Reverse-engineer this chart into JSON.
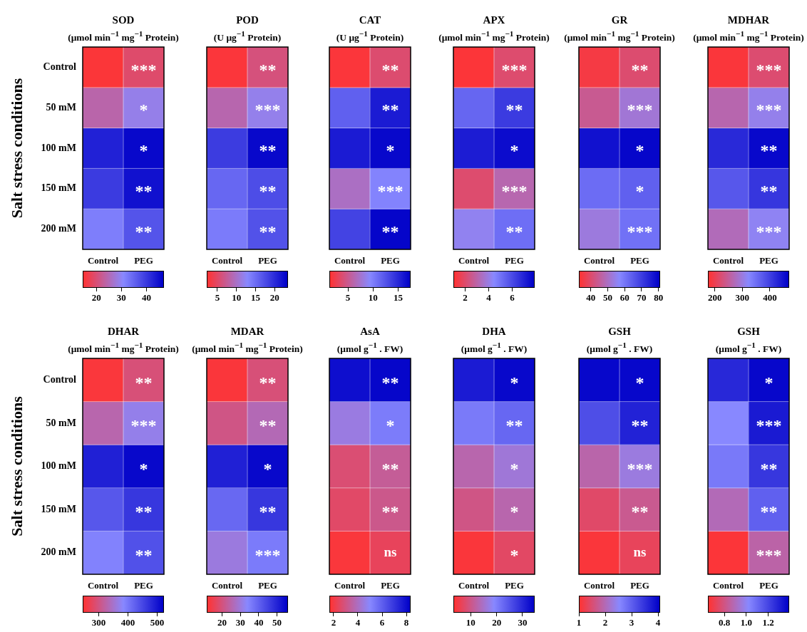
{
  "chart_data": [
    {
      "type": "heatmap",
      "title": "SOD",
      "subtitle": "(μmol min$^{−1}$ mg$^{−1}$ Protein)",
      "ylabel": "Salt stress conditions",
      "categories": [
        "Control",
        "PEG"
      ],
      "y_categories": [
        "Control",
        "50 mM",
        "100 mM",
        "150 mM",
        "200 mM"
      ],
      "cells": [
        [
          15,
          19
        ],
        [
          24,
          29
        ],
        [
          43,
          46
        ],
        [
          40,
          45
        ],
        [
          32,
          37
        ]
      ],
      "cell_labels": [
        [
          null,
          "***"
        ],
        [
          null,
          "*"
        ],
        [
          null,
          "*"
        ],
        [
          null,
          "**"
        ],
        [
          null,
          "**"
        ]
      ],
      "clim": [
        14.5,
        47
      ],
      "cticks": [
        20,
        30,
        40
      ]
    },
    {
      "type": "heatmap",
      "title": "POD",
      "subtitle": "(U μg$^{−1}$ Protein)",
      "tick_labels": "x",
      "categories": [
        "Control",
        "PEG"
      ],
      "y_categories": [
        null,
        null,
        null,
        null,
        null
      ],
      "cells": [
        [
          2.6,
          6.0
        ],
        [
          8.6,
          11.8
        ],
        [
          18.8,
          22.9
        ],
        [
          15.4,
          17.5
        ],
        [
          13.9,
          17.1
        ]
      ],
      "cell_labels": [
        [
          null,
          "**"
        ],
        [
          null,
          "***"
        ],
        [
          null,
          "**"
        ],
        [
          null,
          "**"
        ],
        [
          null,
          "**"
        ]
      ],
      "clim": [
        2.2,
        23.5
      ],
      "cticks": [
        5,
        10,
        15,
        20
      ]
    },
    {
      "type": "heatmap",
      "title": "CAT",
      "subtitle": "(U μg$^{−1}$ Protein)",
      "tick_labels": "x",
      "categories": [
        "Control",
        "PEG"
      ],
      "y_categories": [
        null,
        null,
        null,
        null,
        null
      ],
      "cells": [
        [
          1.6,
          3.7
        ],
        [
          11.8,
          15.9
        ],
        [
          15.9,
          17.0
        ],
        [
          7.0,
          9.7
        ],
        [
          13.5,
          17.2
        ]
      ],
      "cell_labels": [
        [
          null,
          "**"
        ],
        [
          null,
          "**"
        ],
        [
          null,
          "*"
        ],
        [
          null,
          "***"
        ],
        [
          null,
          "**"
        ]
      ],
      "clim": [
        1.3,
        17.5
      ],
      "cticks": [
        5,
        10,
        15
      ]
    },
    {
      "type": "heatmap",
      "title": "APX",
      "subtitle": "(μmol min$^{−1}$ mg$^{−1}$ Protein)",
      "tick_labels": "x",
      "categories": [
        "Control",
        "PEG"
      ],
      "y_categories": [
        null,
        null,
        null,
        null,
        null
      ],
      "cells": [
        [
          1.1,
          2.0
        ],
        [
          5.3,
          6.4
        ],
        [
          7.2,
          7.6
        ],
        [
          2.0,
          3.1
        ],
        [
          4.2,
          5.1
        ]
      ],
      "cell_labels": [
        [
          null,
          "***"
        ],
        [
          null,
          "**"
        ],
        [
          null,
          "*"
        ],
        [
          null,
          "***"
        ],
        [
          null,
          "**"
        ]
      ],
      "clim": [
        1.0,
        7.9
      ],
      "cticks": [
        2,
        4,
        6
      ]
    },
    {
      "type": "heatmap",
      "title": "GR",
      "subtitle": "(μmol min$^{−1}$ mg$^{−1}$ Protein)",
      "tick_labels": "x",
      "categories": [
        "Control",
        "PEG"
      ],
      "y_categories": [
        null,
        null,
        null,
        null,
        null
      ],
      "cells": [
        [
          35,
          40
        ],
        [
          44,
          52
        ],
        [
          78,
          80
        ],
        [
          62,
          64
        ],
        [
          53,
          61
        ]
      ],
      "cell_labels": [
        [
          null,
          "**"
        ],
        [
          null,
          "***"
        ],
        [
          null,
          "*"
        ],
        [
          null,
          "*"
        ],
        [
          null,
          "***"
        ]
      ],
      "clim": [
        33,
        81
      ],
      "cticks": [
        40,
        50,
        60,
        70,
        80
      ]
    },
    {
      "type": "heatmap",
      "title": "MDHAR",
      "subtitle": "(μmol min$^{−1}$ mg$^{−1}$ Protein)",
      "tick_labels": "x",
      "categories": [
        "Control",
        "PEG"
      ],
      "y_categories": [
        null,
        null,
        null,
        null,
        null
      ],
      "cells": [
        [
          181,
          219
        ],
        [
          264,
          308
        ],
        [
          426,
          461
        ],
        [
          376,
          411
        ],
        [
          272,
          314
        ]
      ],
      "cell_labels": [
        [
          null,
          "***"
        ],
        [
          null,
          "***"
        ],
        [
          null,
          "**"
        ],
        [
          null,
          "**"
        ],
        [
          null,
          "***"
        ]
      ],
      "clim": [
        175,
        470
      ],
      "cticks": [
        200,
        300,
        400
      ]
    },
    {
      "type": "heatmap",
      "title": "DHAR",
      "subtitle": "(μmol min$^{−1}$ mg$^{−1}$ Protein)",
      "ylabel": "Salt stress conditions",
      "categories": [
        "Control",
        "PEG"
      ],
      "y_categories": [
        "Control",
        "50 mM",
        "100 mM",
        "150 mM",
        "200 mM"
      ],
      "cells": [
        [
          251,
          292
        ],
        [
          328,
          370
        ],
        [
          490,
          515
        ],
        [
          434,
          467
        ],
        [
          390,
          440
        ]
      ],
      "cell_labels": [
        [
          null,
          "**"
        ],
        [
          null,
          "***"
        ],
        [
          null,
          "*"
        ],
        [
          null,
          "**"
        ],
        [
          null,
          "**"
        ]
      ],
      "clim": [
        245,
        523
      ],
      "cticks": [
        300,
        400,
        500
      ]
    },
    {
      "type": "heatmap",
      "title": "MDAR",
      "subtitle": "(μmol min$^{−1}$ mg$^{−1}$ Protein)",
      "tick_labels": "x",
      "categories": [
        "Control",
        "PEG"
      ],
      "y_categories": [
        null,
        null,
        null,
        null,
        null
      ],
      "cells": [
        [
          12.5,
          19.1
        ],
        [
          20.5,
          25.8
        ],
        [
          50.7,
          54.7
        ],
        [
          39.1,
          47.1
        ],
        [
          30.2,
          36.0
        ]
      ],
      "cell_labels": [
        [
          null,
          "**"
        ],
        [
          null,
          "**"
        ],
        [
          null,
          "*"
        ],
        [
          null,
          "**"
        ],
        [
          null,
          "***"
        ]
      ],
      "clim": [
        11.6,
        56
      ],
      "cticks": [
        20,
        30,
        40,
        50
      ]
    },
    {
      "type": "heatmap",
      "title": "AsA",
      "subtitle": "(μmol g$^{−1}$ . FW)",
      "tick_labels": "x",
      "categories": [
        "Control",
        "PEG"
      ],
      "y_categories": [
        null,
        null,
        null,
        null,
        null
      ],
      "cells": [
        [
          8.0,
          8.2
        ],
        [
          4.5,
          5.3
        ],
        [
          2.7,
          3.3
        ],
        [
          2.5,
          3.1
        ],
        [
          1.8,
          2.3
        ]
      ],
      "cell_labels": [
        [
          null,
          "**"
        ],
        [
          null,
          "*"
        ],
        [
          null,
          "**"
        ],
        [
          null,
          "**"
        ],
        [
          null,
          "ns"
        ]
      ],
      "clim": [
        1.65,
        8.35
      ],
      "cticks": [
        2,
        4,
        6,
        8
      ]
    },
    {
      "type": "heatmap",
      "title": "DHA",
      "subtitle": "(μmol g$^{−1}$ . FW)",
      "tick_labels": "x",
      "categories": [
        "Control",
        "PEG"
      ],
      "y_categories": [
        null,
        null,
        null,
        null,
        null
      ],
      "cells": [
        [
          31.6,
          33.8
        ],
        [
          20.6,
          22.8
        ],
        [
          12.7,
          15.9
        ],
        [
          9.6,
          12.7
        ],
        [
          3.9,
          7.1
        ]
      ],
      "cell_labels": [
        [
          null,
          "*"
        ],
        [
          null,
          "**"
        ],
        [
          null,
          "*"
        ],
        [
          null,
          "*"
        ],
        [
          null,
          "*"
        ]
      ],
      "clim": [
        3.3,
        34.7
      ],
      "cticks": [
        10,
        20,
        30
      ]
    },
    {
      "type": "heatmap",
      "title": "GSH",
      "subtitle": "(μmol g$^{−1}$ . FW)",
      "tick_labels": "x",
      "categories": [
        "Control",
        "PEG"
      ],
      "y_categories": [
        null,
        null,
        null,
        null,
        null
      ],
      "cells": [
        [
          4.0,
          4.0
        ],
        [
          3.2,
          3.7
        ],
        [
          1.9,
          2.3
        ],
        [
          1.4,
          1.7
        ],
        [
          1.06,
          1.3
        ]
      ],
      "cell_labels": [
        [
          null,
          "*"
        ],
        [
          null,
          "**"
        ],
        [
          null,
          "***"
        ],
        [
          null,
          "**"
        ],
        [
          null,
          "ns"
        ]
      ],
      "clim": [
        1,
        4.08
      ],
      "cticks": [
        1,
        2,
        3,
        4
      ]
    },
    {
      "type": "heatmap",
      "title": "GSH",
      "subtitle": "(μmol g$^{−1}$ . FW)",
      "tick_labels": "x",
      "categories": [
        "Control",
        "PEG"
      ],
      "y_categories": [
        null,
        null,
        null,
        null,
        null
      ],
      "cells": [
        [
          1.28,
          1.37
        ],
        [
          1.02,
          1.32
        ],
        [
          1.06,
          1.24
        ],
        [
          0.89,
          1.13
        ],
        [
          0.66,
          0.86
        ]
      ],
      "cell_labels": [
        [
          null,
          "*"
        ],
        [
          null,
          "***"
        ],
        [
          null,
          "**"
        ],
        [
          null,
          "**"
        ],
        [
          null,
          "***"
        ]
      ],
      "clim": [
        0.65,
        1.39
      ],
      "cticks": [
        {
          "value": 0.8,
          "label": "0.8"
        },
        {
          "value": 1.0,
          "label": "1.0"
        },
        {
          "value": 1.2,
          "label": "1.2"
        }
      ]
    }
  ]
}
